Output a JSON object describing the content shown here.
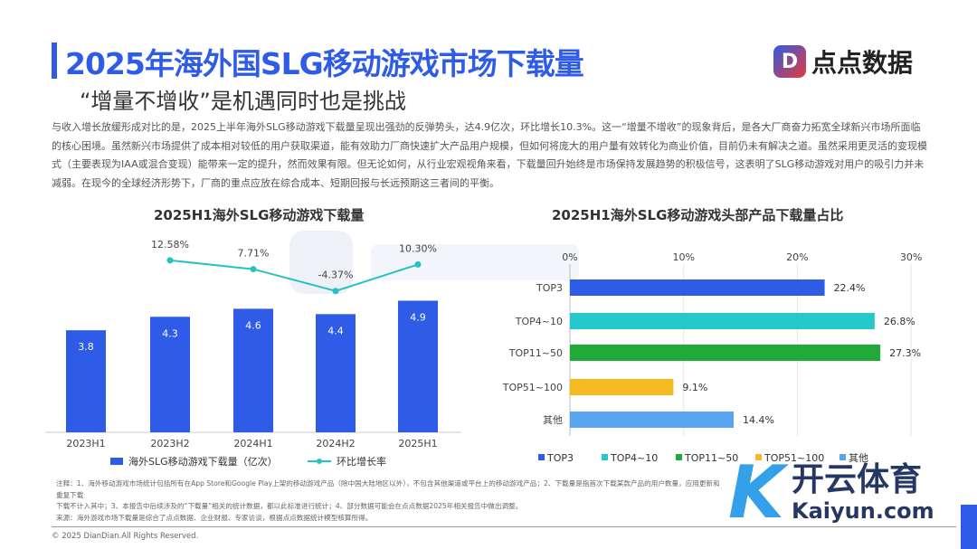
{
  "header": {
    "title": "2025年海外国SLG移动游戏市场下载量",
    "subtitle": "“增量不增收”是机遇同时也是挑战",
    "logo_text": "点点数据",
    "logo_mark": "D"
  },
  "paragraph": "与收入增长放缓形成对比的是，2025上半年海外SLG移动游戏下载量呈现出强劲的反弹势头，达4.9亿次，环比增长10.3%。这一“增量不增收”的现象背后，是各大厂商奋力拓宽全球新兴市场所面临的核心困境。虽然新兴市场提供了成本相对较低的用户获取渠道，能有效助力厂商快速扩大产品用户规模，但如何将庞大的用户量有效转化为商业价值，目前仍未有解决之道。虽然采用更灵活的变现模式（主要表现为IAA或混合变现）能带来一定的提升，然而效果有限。但无论如何，从行业宏观视角来看，下载量回升始终是市场保持发展趋势的积极信号，这表明了SLG移动游戏对用户的吸引力并未减弱。在现今的全球经济形势下，厂商的重点应放在综合成本、短期回报与长远预期这三者间的平衡。",
  "chart_data": [
    {
      "type": "bar",
      "title": "2025H1海外SLG移动游戏下载量",
      "categories": [
        "2023H1",
        "2023H2",
        "2024H1",
        "2024H2",
        "2025H1"
      ],
      "series": [
        {
          "name": "海外SLG移动游戏下载量（亿次）",
          "type": "bar",
          "values": [
            3.8,
            4.3,
            4.6,
            4.4,
            4.9
          ],
          "labels": [
            "3.8",
            "4.3",
            "4.6",
            "4.4",
            "4.9"
          ],
          "color": "#2f5ce6"
        },
        {
          "name": "环比增长率",
          "type": "line",
          "values": [
            null,
            12.58,
            7.71,
            -4.37,
            10.3
          ],
          "labels": [
            "",
            "12.58%",
            "7.71%",
            "-4.37%",
            "10.30%"
          ],
          "color": "#26c2c2"
        }
      ]
    },
    {
      "type": "bar",
      "orientation": "horizontal",
      "title": "2025H1海外SLG移动游戏头部产品下载量占比",
      "categories": [
        "TOP3",
        "TOP4~10",
        "TOP11~50",
        "TOP51~100",
        "其他"
      ],
      "values": [
        22.4,
        26.8,
        27.3,
        9.1,
        14.4
      ],
      "labels": [
        "22.4%",
        "26.8%",
        "27.3%",
        "9.1%",
        "14.4%"
      ],
      "colors": [
        "#2f5ce6",
        "#26c9c9",
        "#1faa3a",
        "#f5b921",
        "#5aa5f0"
      ],
      "xlim": [
        0,
        30
      ],
      "xticks": [
        "0%",
        "10%",
        "20%",
        "30%"
      ],
      "legend": "bottom"
    }
  ],
  "footer": {
    "notes": [
      "注释：1、海外移动游戏市场统计包括所有在App Store和Google Play上架的移动游戏产品（除中国大陆地区以外），不包含其他渠道或平台上的移动游戏产品；2、下载量是指首次下载某款产品的用户数量，应用更新和重复下载",
      "下载不计入其中；3、本报告中后续涉及的“下载量”相关的统计数据，都以此标准进行统计；4、部分数据可能会在点点数据2025年相关报告中做出调整。",
      "来源：海外游戏市场下载量是综合了点点数据、企业财报、专家访谈，根据点点数据统计模型核算所得。"
    ],
    "copyright": "© 2025 DianDian.All Rights Reserved."
  },
  "watermark": {
    "cn": "开云体育",
    "en": "Kaiyun.com",
    "bg": "点点数据"
  }
}
